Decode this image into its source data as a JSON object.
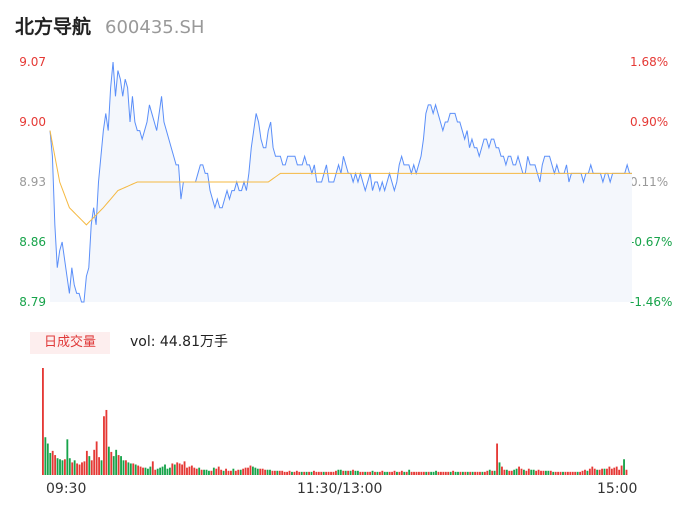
{
  "header": {
    "stock_name": "北方导航",
    "stock_code": "600435.SH"
  },
  "colors": {
    "up": "#e53935",
    "down": "#17a34a",
    "neutral": "#999999",
    "price_line": "#5b8ff9",
    "avg_line": "#f5b942"
  },
  "volume_panel": {
    "tab_label": "日成交量",
    "vol_label": "vol: 44.81万手"
  },
  "chart_data": {
    "type": "line",
    "title": "",
    "prev_close": 8.92,
    "y_left_ticks": [
      "9.07",
      "9.00",
      "8.93",
      "8.86",
      "8.79"
    ],
    "y_right_ticks": [
      "1.68%",
      "0.90%",
      "0.11%",
      "-0.67%",
      "-1.46%"
    ],
    "ylim": [
      8.79,
      9.07
    ],
    "x_ticks": [
      "09:30",
      "11:30/13:00",
      "15:00"
    ],
    "minutes": 240,
    "price_keypoints": [
      [
        0,
        8.99
      ],
      [
        1,
        8.96
      ],
      [
        2,
        8.88
      ],
      [
        3,
        8.83
      ],
      [
        4,
        8.85
      ],
      [
        5,
        8.86
      ],
      [
        6,
        8.84
      ],
      [
        7,
        8.82
      ],
      [
        8,
        8.8
      ],
      [
        9,
        8.83
      ],
      [
        10,
        8.81
      ],
      [
        11,
        8.8
      ],
      [
        12,
        8.8
      ],
      [
        13,
        8.79
      ],
      [
        14,
        8.79
      ],
      [
        15,
        8.82
      ],
      [
        16,
        8.83
      ],
      [
        17,
        8.88
      ],
      [
        18,
        8.9
      ],
      [
        19,
        8.88
      ],
      [
        20,
        8.93
      ],
      [
        21,
        8.96
      ],
      [
        22,
        8.99
      ],
      [
        23,
        9.01
      ],
      [
        24,
        8.99
      ],
      [
        25,
        9.04
      ],
      [
        26,
        9.07
      ],
      [
        27,
        9.03
      ],
      [
        28,
        9.06
      ],
      [
        29,
        9.05
      ],
      [
        30,
        9.03
      ],
      [
        31,
        9.05
      ],
      [
        32,
        9.04
      ],
      [
        33,
        9.0
      ],
      [
        34,
        9.03
      ],
      [
        35,
        9.0
      ],
      [
        36,
        8.99
      ],
      [
        37,
        8.99
      ],
      [
        38,
        8.98
      ],
      [
        39,
        8.99
      ],
      [
        40,
        9.0
      ],
      [
        41,
        9.02
      ],
      [
        42,
        9.01
      ],
      [
        43,
        9.0
      ],
      [
        44,
        8.99
      ],
      [
        45,
        9.01
      ],
      [
        46,
        9.03
      ],
      [
        47,
        9.0
      ],
      [
        48,
        8.99
      ],
      [
        49,
        8.98
      ],
      [
        50,
        8.97
      ],
      [
        51,
        8.96
      ],
      [
        52,
        8.95
      ],
      [
        53,
        8.95
      ],
      [
        54,
        8.91
      ],
      [
        55,
        8.93
      ],
      [
        56,
        8.93
      ],
      [
        57,
        8.93
      ],
      [
        58,
        8.93
      ],
      [
        59,
        8.93
      ],
      [
        60,
        8.93
      ],
      [
        61,
        8.94
      ],
      [
        62,
        8.95
      ],
      [
        63,
        8.95
      ],
      [
        64,
        8.94
      ],
      [
        65,
        8.94
      ],
      [
        66,
        8.92
      ],
      [
        67,
        8.91
      ],
      [
        68,
        8.9
      ],
      [
        69,
        8.91
      ],
      [
        70,
        8.9
      ],
      [
        71,
        8.9
      ],
      [
        72,
        8.91
      ],
      [
        73,
        8.92
      ],
      [
        74,
        8.91
      ],
      [
        75,
        8.92
      ],
      [
        76,
        8.92
      ],
      [
        77,
        8.93
      ],
      [
        78,
        8.92
      ],
      [
        79,
        8.92
      ],
      [
        80,
        8.93
      ],
      [
        81,
        8.92
      ],
      [
        82,
        8.94
      ],
      [
        83,
        8.97
      ],
      [
        84,
        8.99
      ],
      [
        85,
        9.01
      ],
      [
        86,
        9.0
      ],
      [
        87,
        8.98
      ],
      [
        88,
        8.97
      ],
      [
        89,
        8.97
      ],
      [
        90,
        8.99
      ],
      [
        91,
        9.0
      ],
      [
        92,
        8.97
      ],
      [
        93,
        8.96
      ],
      [
        94,
        8.96
      ],
      [
        95,
        8.96
      ],
      [
        96,
        8.95
      ],
      [
        97,
        8.95
      ],
      [
        98,
        8.96
      ],
      [
        99,
        8.96
      ],
      [
        100,
        8.96
      ],
      [
        101,
        8.96
      ],
      [
        102,
        8.95
      ],
      [
        103,
        8.95
      ],
      [
        104,
        8.95
      ],
      [
        105,
        8.96
      ],
      [
        106,
        8.95
      ],
      [
        107,
        8.95
      ],
      [
        108,
        8.94
      ],
      [
        109,
        8.95
      ],
      [
        110,
        8.93
      ],
      [
        111,
        8.93
      ],
      [
        112,
        8.93
      ],
      [
        113,
        8.94
      ],
      [
        114,
        8.95
      ],
      [
        115,
        8.93
      ],
      [
        116,
        8.93
      ],
      [
        117,
        8.93
      ],
      [
        118,
        8.94
      ],
      [
        119,
        8.95
      ],
      [
        120,
        8.94
      ],
      [
        121,
        8.96
      ],
      [
        122,
        8.95
      ],
      [
        123,
        8.94
      ],
      [
        124,
        8.94
      ],
      [
        125,
        8.93
      ],
      [
        126,
        8.94
      ],
      [
        127,
        8.93
      ],
      [
        128,
        8.94
      ],
      [
        129,
        8.93
      ],
      [
        130,
        8.92
      ],
      [
        131,
        8.93
      ],
      [
        132,
        8.94
      ],
      [
        133,
        8.92
      ],
      [
        134,
        8.93
      ],
      [
        135,
        8.93
      ],
      [
        136,
        8.92
      ],
      [
        137,
        8.93
      ],
      [
        138,
        8.92
      ],
      [
        139,
        8.93
      ],
      [
        140,
        8.94
      ],
      [
        141,
        8.93
      ],
      [
        142,
        8.92
      ],
      [
        143,
        8.93
      ],
      [
        144,
        8.95
      ],
      [
        145,
        8.96
      ],
      [
        146,
        8.95
      ],
      [
        147,
        8.95
      ],
      [
        148,
        8.95
      ],
      [
        149,
        8.94
      ],
      [
        150,
        8.95
      ],
      [
        151,
        8.94
      ],
      [
        152,
        8.95
      ],
      [
        153,
        8.96
      ],
      [
        154,
        8.98
      ],
      [
        155,
        9.01
      ],
      [
        156,
        9.02
      ],
      [
        157,
        9.02
      ],
      [
        158,
        9.01
      ],
      [
        159,
        9.02
      ],
      [
        160,
        9.01
      ],
      [
        161,
        9.0
      ],
      [
        162,
        8.99
      ],
      [
        163,
        9.0
      ],
      [
        164,
        9.0
      ],
      [
        165,
        9.01
      ],
      [
        166,
        9.01
      ],
      [
        167,
        9.01
      ],
      [
        168,
        9.0
      ],
      [
        169,
        9.0
      ],
      [
        170,
        8.99
      ],
      [
        171,
        8.98
      ],
      [
        172,
        8.99
      ],
      [
        173,
        8.97
      ],
      [
        174,
        8.98
      ],
      [
        175,
        8.97
      ],
      [
        176,
        8.97
      ],
      [
        177,
        8.96
      ],
      [
        178,
        8.97
      ],
      [
        179,
        8.98
      ],
      [
        180,
        8.98
      ],
      [
        181,
        8.97
      ],
      [
        182,
        8.98
      ],
      [
        183,
        8.98
      ],
      [
        184,
        8.97
      ],
      [
        185,
        8.97
      ],
      [
        186,
        8.96
      ],
      [
        187,
        8.96
      ],
      [
        188,
        8.95
      ],
      [
        189,
        8.96
      ],
      [
        190,
        8.96
      ],
      [
        191,
        8.95
      ],
      [
        192,
        8.95
      ],
      [
        193,
        8.96
      ],
      [
        194,
        8.95
      ],
      [
        195,
        8.94
      ],
      [
        196,
        8.94
      ],
      [
        197,
        8.96
      ],
      [
        198,
        8.95
      ],
      [
        199,
        8.95
      ],
      [
        200,
        8.95
      ],
      [
        201,
        8.94
      ],
      [
        202,
        8.93
      ],
      [
        203,
        8.95
      ],
      [
        204,
        8.96
      ],
      [
        205,
        8.96
      ],
      [
        206,
        8.96
      ],
      [
        207,
        8.95
      ],
      [
        208,
        8.94
      ],
      [
        209,
        8.95
      ],
      [
        210,
        8.94
      ],
      [
        211,
        8.94
      ],
      [
        212,
        8.94
      ],
      [
        213,
        8.95
      ],
      [
        214,
        8.93
      ],
      [
        215,
        8.94
      ],
      [
        216,
        8.94
      ],
      [
        217,
        8.94
      ],
      [
        218,
        8.94
      ],
      [
        219,
        8.94
      ],
      [
        220,
        8.93
      ],
      [
        221,
        8.94
      ],
      [
        222,
        8.94
      ],
      [
        223,
        8.95
      ],
      [
        224,
        8.94
      ],
      [
        225,
        8.94
      ],
      [
        226,
        8.94
      ],
      [
        227,
        8.94
      ],
      [
        228,
        8.93
      ],
      [
        229,
        8.94
      ],
      [
        230,
        8.94
      ],
      [
        231,
        8.93
      ],
      [
        232,
        8.94
      ],
      [
        233,
        8.94
      ],
      [
        234,
        8.94
      ],
      [
        235,
        8.94
      ],
      [
        236,
        8.94
      ],
      [
        237,
        8.94
      ],
      [
        238,
        8.95
      ],
      [
        239,
        8.94
      ],
      [
        240,
        8.94
      ]
    ],
    "avg_keypoints": [
      [
        0,
        8.99
      ],
      [
        4,
        8.93
      ],
      [
        8,
        8.9
      ],
      [
        15,
        8.88
      ],
      [
        22,
        8.9
      ],
      [
        28,
        8.92
      ],
      [
        36,
        8.93
      ],
      [
        90,
        8.93
      ],
      [
        95,
        8.94
      ],
      [
        240,
        8.94
      ]
    ],
    "volume": [
      10.2,
      3.6,
      3.0,
      2.1,
      2.3,
      1.9,
      1.6,
      1.5,
      1.4,
      1.5,
      3.4,
      1.6,
      1.2,
      1.4,
      1.1,
      1.0,
      1.2,
      1.3,
      2.3,
      1.8,
      1.4,
      2.4,
      3.2,
      1.7,
      1.4,
      5.6,
      6.2,
      2.7,
      2.2,
      1.8,
      2.4,
      1.9,
      1.8,
      1.4,
      1.4,
      1.2,
      1.1,
      1.1,
      1.0,
      0.9,
      0.8,
      0.7,
      0.7,
      0.6,
      0.8,
      1.3,
      0.5,
      0.6,
      0.7,
      0.8,
      1.0,
      0.6,
      0.7,
      1.1,
      1.0,
      1.2,
      1.1,
      1.0,
      1.3,
      0.7,
      0.8,
      0.9,
      0.7,
      0.6,
      0.7,
      0.5,
      0.5,
      0.5,
      0.4,
      0.4,
      0.7,
      0.6,
      0.8,
      0.5,
      0.4,
      0.6,
      0.4,
      0.4,
      0.6,
      0.4,
      0.5,
      0.5,
      0.6,
      0.7,
      0.7,
      0.9,
      0.8,
      0.7,
      0.6,
      0.6,
      0.6,
      0.5,
      0.5,
      0.5,
      0.4,
      0.4,
      0.4,
      0.4,
      0.4,
      0.3,
      0.3,
      0.4,
      0.3,
      0.3,
      0.4,
      0.3,
      0.3,
      0.3,
      0.3,
      0.3,
      0.3,
      0.4,
      0.3,
      0.3,
      0.3,
      0.3,
      0.3,
      0.3,
      0.3,
      0.3,
      0.4,
      0.5,
      0.5,
      0.4,
      0.4,
      0.4,
      0.4,
      0.5,
      0.4,
      0.4,
      0.3,
      0.3,
      0.3,
      0.3,
      0.3,
      0.4,
      0.3,
      0.3,
      0.3,
      0.4,
      0.3,
      0.3,
      0.3,
      0.3,
      0.4,
      0.3,
      0.3,
      0.4,
      0.3,
      0.3,
      0.5,
      0.3,
      0.3,
      0.3,
      0.3,
      0.3,
      0.3,
      0.3,
      0.3,
      0.3,
      0.3,
      0.4,
      0.3,
      0.3,
      0.3,
      0.3,
      0.3,
      0.3,
      0.4,
      0.3,
      0.3,
      0.3,
      0.3,
      0.3,
      0.3,
      0.3,
      0.3,
      0.3,
      0.3,
      0.3,
      0.3,
      0.3,
      0.4,
      0.5,
      0.4,
      0.4,
      3.0,
      1.2,
      0.8,
      0.5,
      0.5,
      0.4,
      0.4,
      0.5,
      0.6,
      0.8,
      0.6,
      0.5,
      0.4,
      0.6,
      0.5,
      0.5,
      0.4,
      0.5,
      0.4,
      0.4,
      0.4,
      0.4,
      0.4,
      0.3,
      0.3,
      0.3,
      0.3,
      0.3,
      0.3,
      0.3,
      0.3,
      0.3,
      0.3,
      0.3,
      0.3,
      0.4,
      0.5,
      0.4,
      0.6,
      0.8,
      0.6,
      0.5,
      0.5,
      0.6,
      0.6,
      0.6,
      0.8,
      0.6,
      0.7,
      0.8,
      0.5,
      0.9,
      1.5,
      0.5
    ]
  }
}
